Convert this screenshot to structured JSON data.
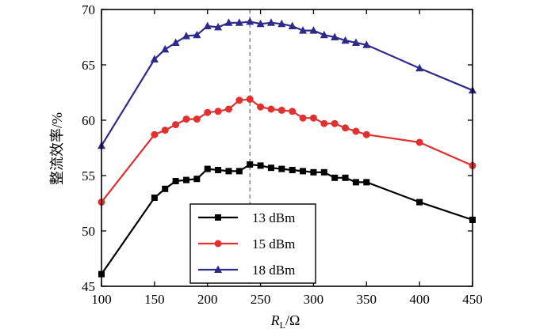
{
  "chart_data": {
    "type": "line",
    "title": "",
    "xlabel": "RL/Ω",
    "xlabel_main": "R",
    "xlabel_sub": "L",
    "xlabel_unit": "/Ω",
    "ylabel": "整流效率/%",
    "xlim": [
      100,
      450
    ],
    "ylim": [
      45,
      70
    ],
    "xticks": [
      100,
      150,
      200,
      250,
      300,
      350,
      400,
      450
    ],
    "yticks": [
      45,
      50,
      55,
      60,
      65,
      70
    ],
    "reference_line_x": 240,
    "legend_placement": "bottom-center",
    "series": [
      {
        "name": "13 dBm",
        "color": "#000000",
        "marker": "square",
        "x": [
          100,
          150,
          160,
          170,
          180,
          190,
          200,
          210,
          220,
          230,
          240,
          250,
          260,
          270,
          280,
          290,
          300,
          310,
          320,
          330,
          340,
          350,
          400,
          450
        ],
        "y": [
          46.1,
          53.0,
          53.8,
          54.5,
          54.6,
          54.7,
          55.6,
          55.5,
          55.4,
          55.4,
          56.0,
          55.9,
          55.7,
          55.6,
          55.5,
          55.4,
          55.3,
          55.3,
          54.8,
          54.8,
          54.4,
          54.4,
          52.6,
          51.0
        ]
      },
      {
        "name": "15 dBm",
        "color": "#e03030",
        "marker": "circle",
        "x": [
          100,
          150,
          160,
          170,
          180,
          190,
          200,
          210,
          220,
          230,
          240,
          250,
          260,
          270,
          280,
          290,
          300,
          310,
          320,
          330,
          340,
          350,
          400,
          450
        ],
        "y": [
          52.6,
          58.7,
          59.1,
          59.6,
          60.1,
          60.1,
          60.7,
          60.8,
          61.0,
          61.8,
          61.9,
          61.2,
          61.0,
          60.9,
          60.8,
          60.2,
          60.2,
          59.7,
          59.7,
          59.3,
          59.0,
          58.7,
          58.0,
          55.9
        ]
      },
      {
        "name": "18 dBm",
        "color": "#2e2a8c",
        "marker": "triangle",
        "x": [
          100,
          150,
          160,
          170,
          180,
          190,
          200,
          210,
          220,
          230,
          240,
          250,
          260,
          270,
          280,
          290,
          300,
          310,
          320,
          330,
          340,
          350,
          400,
          450
        ],
        "y": [
          57.7,
          65.5,
          66.4,
          67.0,
          67.6,
          67.7,
          68.5,
          68.4,
          68.8,
          68.8,
          68.9,
          68.7,
          68.8,
          68.7,
          68.5,
          68.1,
          68.1,
          67.7,
          67.5,
          67.2,
          67.0,
          66.8,
          64.7,
          62.7
        ]
      }
    ]
  }
}
